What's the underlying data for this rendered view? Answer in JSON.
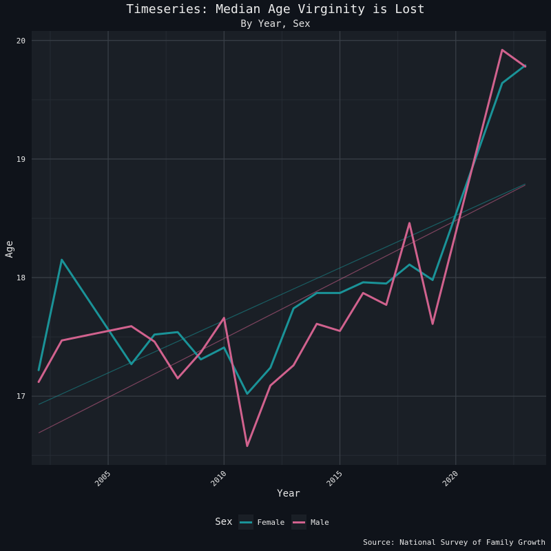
{
  "chart_data": {
    "type": "line",
    "title": "Timeseries: Median Age Virginity is Lost",
    "subtitle": "By Year, Sex",
    "xlabel": "Year",
    "ylabel": "Age",
    "xlim": [
      2001.7,
      2023.9
    ],
    "ylim": [
      16.42,
      20.08
    ],
    "xticks": [
      2005,
      2010,
      2015,
      2020
    ],
    "xtick_labels": [
      "2005",
      "2010",
      "2015",
      "2020"
    ],
    "yticks": [
      17,
      18,
      19,
      20
    ],
    "ytick_labels": [
      "17",
      "18",
      "19",
      "20"
    ],
    "grid": true,
    "legend": {
      "title": "Sex",
      "position": "bottom"
    },
    "caption": "Source: National Survey of Family Growth",
    "series": [
      {
        "name": "Female",
        "color": "#1a9398",
        "x": [
          2002,
          2003,
          2006,
          2007,
          2008,
          2009,
          2010,
          2011,
          2012,
          2013,
          2014,
          2015,
          2016,
          2017,
          2018,
          2019,
          2022,
          2023
        ],
        "y": [
          17.22,
          18.15,
          17.27,
          17.52,
          17.54,
          17.31,
          17.41,
          17.02,
          17.24,
          17.74,
          17.87,
          17.87,
          17.96,
          17.95,
          18.11,
          17.98,
          19.64,
          19.79
        ],
        "trend": [
          16.93,
          18.79
        ]
      },
      {
        "name": "Male",
        "color": "#d1628e",
        "x": [
          2002,
          2003,
          2006,
          2007,
          2008,
          2009,
          2010,
          2011,
          2012,
          2013,
          2014,
          2015,
          2016,
          2017,
          2018,
          2019,
          2022,
          2023
        ],
        "y": [
          17.12,
          17.47,
          17.59,
          17.46,
          17.15,
          17.37,
          17.66,
          16.58,
          17.09,
          17.26,
          17.61,
          17.55,
          17.87,
          17.77,
          18.46,
          17.61,
          19.92,
          19.78
        ],
        "trend": [
          16.69,
          18.78
        ]
      }
    ]
  }
}
